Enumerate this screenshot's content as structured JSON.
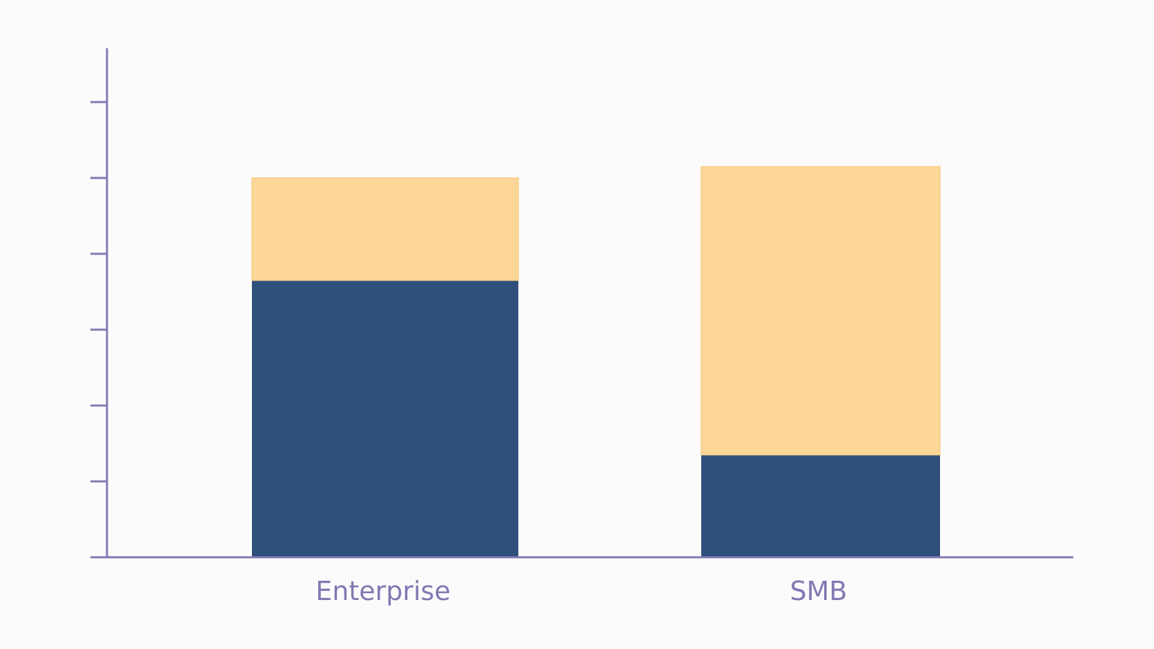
{
  "chart_data": {
    "type": "bar",
    "stacked": true,
    "categories": [
      "Enterprise",
      "SMB"
    ],
    "series": [
      {
        "values": [
          73,
          27
        ],
        "color": "#30507c"
      },
      {
        "values": [
          27,
          76
        ],
        "color": "#fcd797"
      }
    ],
    "ylim": [
      0,
      120
    ],
    "y_tick_values": [
      20,
      40,
      60,
      80,
      100,
      120
    ],
    "y_tick_labels_shown": false,
    "grid": false,
    "legend": "none",
    "title": "",
    "xlabel": "",
    "ylabel": "",
    "axis_color": "#8378b2",
    "label_color": "#8378b2"
  }
}
